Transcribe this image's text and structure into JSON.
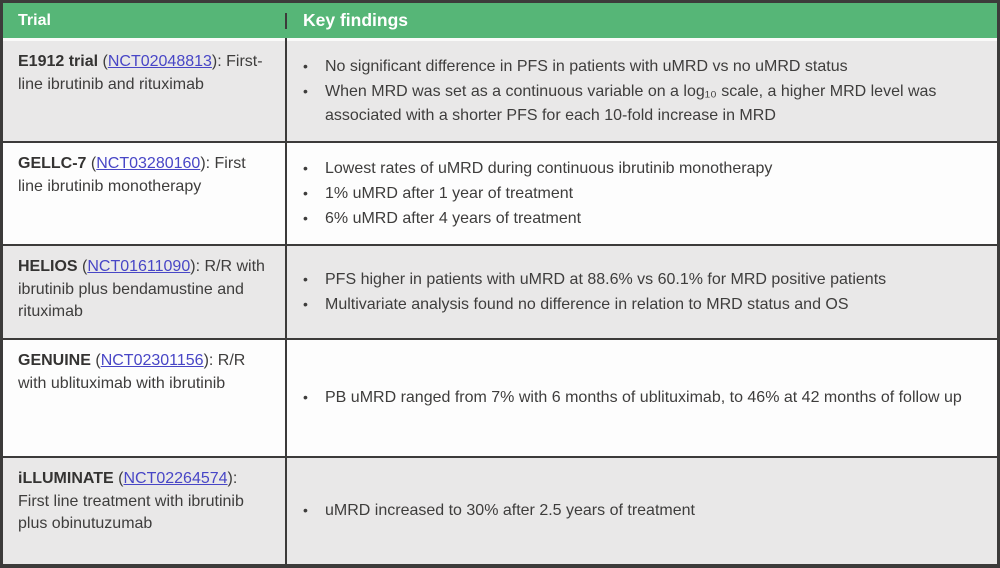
{
  "colors": {
    "header_bg": "#56b677",
    "header_text": "#ffffff",
    "border": "#3c3b3a",
    "row_alt_bg": "#e9e8e8",
    "row_bg": "#fdfdfd",
    "link": "#4846c6",
    "text": "#3e3d3c"
  },
  "table": {
    "columns": [
      {
        "label": "Trial"
      },
      {
        "label": "Key findings"
      }
    ],
    "punctuation": {
      "open": " (",
      "close": "): "
    },
    "rows": [
      {
        "trial": {
          "name": "E1912 trial",
          "nct": "NCT02048813",
          "description": "First-line ibrutinib and rituximab"
        },
        "findings": [
          "No significant difference in PFS in patients with uMRD vs no uMRD status",
          "When MRD was set as a continuous variable on a log₁₀ scale, a higher MRD level was associated with a shorter PFS for each 10-fold increase in MRD"
        ]
      },
      {
        "trial": {
          "name": "GELLC-7",
          "nct": "NCT03280160",
          "description": "First line ibrutinib monotherapy"
        },
        "findings": [
          "Lowest rates of uMRD during continuous ibrutinib monotherapy",
          "1% uMRD after 1 year of treatment",
          "6% uMRD after 4 years of treatment"
        ]
      },
      {
        "trial": {
          "name": "HELIOS",
          "nct": "NCT01611090",
          "description": "R/R with ibrutinib plus bendamustine and rituximab"
        },
        "findings": [
          "PFS higher in patients with uMRD at 88.6% vs 60.1% for MRD positive patients",
          "Multivariate analysis found no difference in relation to MRD status and OS"
        ]
      },
      {
        "trial": {
          "name": "GENUINE",
          "nct": "NCT02301156",
          "description": "R/R with ublituximab with ibrutinib"
        },
        "findings": [
          "PB uMRD ranged from 7% with 6 months of ublituximab, to 46% at 42 months of follow up"
        ]
      },
      {
        "trial": {
          "name": "iLLUMINATE",
          "nct": "NCT02264574",
          "description": "First line treatment with ibrutinib plus obinutuzumab"
        },
        "findings": [
          "uMRD increased to 30% after 2.5 years of treatment"
        ]
      }
    ]
  }
}
